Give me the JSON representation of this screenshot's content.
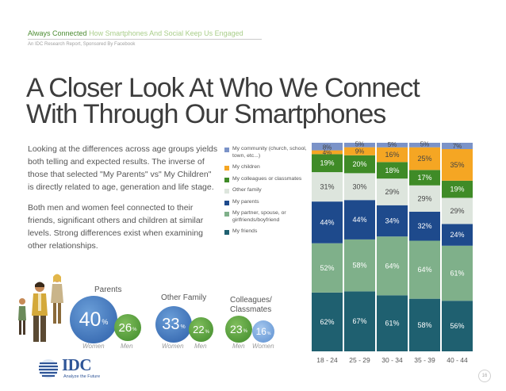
{
  "header": {
    "series_title": "Always Connected",
    "series_subtitle": "How Smartphones And Social Keep Us Engaged",
    "report_line": "An IDC Research Report, Sponsored By Facebook"
  },
  "title": "A Closer Look At Who We Connect\nWith Through Our Smartphones",
  "paragraphs": [
    "Looking at the differences across age groups yields both telling and expected results. The inverse of those that selected \"My Parents\" vs\" My Children\" is directly related to age, generation and life stage.",
    "Both men and women feel connected to their friends, significant others and children at similar levels. Strong differences exist when examining other relationships."
  ],
  "groups": {
    "parents": {
      "label": "Parents",
      "left": {
        "value": "40",
        "unit": "%",
        "caption": "Women",
        "color": "#2c5ea8"
      },
      "right": {
        "value": "26",
        "unit": "%",
        "caption": "Men",
        "color": "#3f8a2a"
      }
    },
    "other_family": {
      "label": "Other Family",
      "left": {
        "value": "33",
        "unit": "%",
        "caption": "Women",
        "color": "#2c5ea8"
      },
      "right": {
        "value": "22",
        "unit": "%",
        "caption": "Men",
        "color": "#3f8a2a"
      }
    },
    "colleagues": {
      "label": "Colleagues/\nClassmates",
      "left": {
        "value": "23",
        "unit": "%",
        "caption": "Men",
        "color": "#3f8a2a"
      },
      "right": {
        "value": "16",
        "unit": "%",
        "caption": "Women",
        "color": "#5b8fd0"
      }
    }
  },
  "logo": {
    "text": "IDC",
    "tagline": "Analyze the Future"
  },
  "page_number": "16",
  "chart_data": {
    "type": "bar",
    "stacked": true,
    "categories": [
      "18 - 24",
      "25 - 29",
      "30 - 34",
      "35 - 39",
      "40 - 44"
    ],
    "series": [
      {
        "name": "My friends",
        "color": "#1f6070",
        "values": [
          62,
          67,
          61,
          58,
          56
        ]
      },
      {
        "name": "My partner, spouse, or girlfriends/boyfriend",
        "color": "#7fb08a",
        "values": [
          52,
          58,
          64,
          64,
          61
        ]
      },
      {
        "name": "My parents",
        "color": "#1e4a8c",
        "values": [
          44,
          44,
          34,
          32,
          24
        ]
      },
      {
        "name": "Other family",
        "color": "#dde5dd",
        "values": [
          31,
          30,
          29,
          29,
          29
        ]
      },
      {
        "name": "My colleagues or classmates",
        "color": "#3f8b27",
        "values": [
          19,
          20,
          18,
          17,
          19
        ]
      },
      {
        "name": "My children",
        "color": "#f5a623",
        "values": [
          4,
          9,
          16,
          25,
          35
        ]
      },
      {
        "name": "My community (church, school, town, etc...)",
        "color": "#7b93c8",
        "values": [
          8,
          5,
          5,
          5,
          7
        ]
      }
    ],
    "label_colors": {
      "light": "#ffffff",
      "dark": "#444444"
    }
  }
}
